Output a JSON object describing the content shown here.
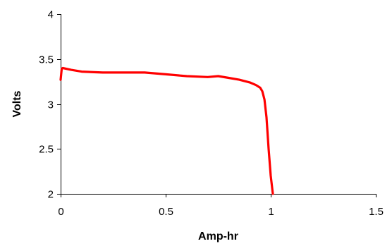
{
  "chart_data": {
    "type": "line",
    "title": "",
    "xlabel": "Amp-hr",
    "ylabel": "Volts",
    "xlim": [
      0,
      1.5
    ],
    "ylim": [
      2,
      4
    ],
    "xticks": [
      0,
      0.5,
      1,
      1.5
    ],
    "xtick_labels": [
      "0",
      "0.5",
      "1",
      "1.5"
    ],
    "yticks": [
      2,
      2.5,
      3,
      3.5,
      4
    ],
    "ytick_labels": [
      "2",
      "2.5",
      "3",
      "3.5",
      "4"
    ],
    "grid": false,
    "legend": "none",
    "series": [
      {
        "color": "#ff0000",
        "x": [
          0,
          0.005,
          0.01,
          0.05,
          0.1,
          0.2,
          0.3,
          0.4,
          0.5,
          0.6,
          0.7,
          0.75,
          0.8,
          0.85,
          0.9,
          0.93,
          0.95,
          0.96,
          0.97,
          0.98,
          0.99,
          1.0,
          1.01
        ],
        "y": [
          3.27,
          3.39,
          3.4,
          3.38,
          3.36,
          3.35,
          3.35,
          3.35,
          3.33,
          3.31,
          3.3,
          3.31,
          3.29,
          3.27,
          3.24,
          3.21,
          3.18,
          3.14,
          3.05,
          2.85,
          2.5,
          2.2,
          2.0
        ]
      }
    ]
  }
}
